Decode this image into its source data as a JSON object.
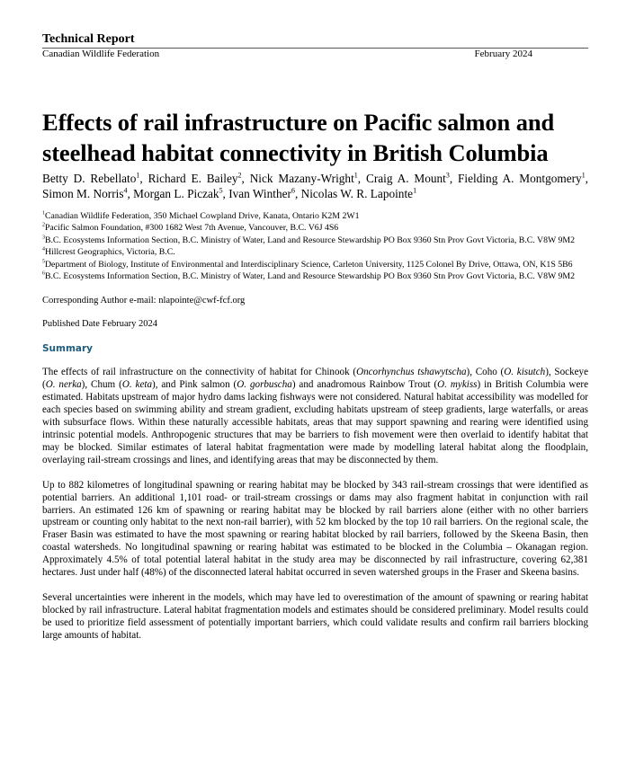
{
  "header": {
    "label": "Technical Report",
    "organization": "Canadian Wildlife Federation",
    "date": "February 2024"
  },
  "title": "Effects of rail infrastructure on Pacific salmon and steelhead habitat connectivity in British Columbia",
  "authors": [
    {
      "name": "Betty D. Rebellato",
      "aff": "1"
    },
    {
      "name": "Richard E. Bailey",
      "aff": "2"
    },
    {
      "name": "Nick Mazany-Wright",
      "aff": "1"
    },
    {
      "name": "Craig A. Mount",
      "aff": "3"
    },
    {
      "name": "Fielding A. Montgomery",
      "aff": "1"
    },
    {
      "name": "Simon M. Norris",
      "aff": "4"
    },
    {
      "name": "Morgan L. Piczak",
      "aff": "5"
    },
    {
      "name": "Ivan Winther",
      "aff": "6"
    },
    {
      "name": "Nicolas W. R. Lapointe",
      "aff": "1"
    }
  ],
  "affiliations": [
    {
      "num": "1",
      "text": "Canadian Wildlife Federation, 350 Michael Cowpland Drive, Kanata, Ontario K2M 2W1"
    },
    {
      "num": "2",
      "text": "Pacific Salmon Foundation, #300 1682 West 7th Avenue, Vancouver, B.C. V6J 4S6"
    },
    {
      "num": "3",
      "text": "B.C. Ecosystems Information Section, B.C. Ministry of Water, Land and Resource Stewardship PO Box 9360 Stn Prov Govt Victoria, B.C. V8W 9M2"
    },
    {
      "num": "4",
      "text": "Hillcrest Geographics, Victoria, B.C."
    },
    {
      "num": "5",
      "text": "Department of Biology, Institute of Environmental and Interdisciplinary Science, Carleton University, 1125 Colonel By Drive, Ottawa, ON, K1S 5B6"
    },
    {
      "num": "6",
      "text": "B.C. Ecosystems Information Section, B.C. Ministry of Water, Land and Resource Stewardship PO Box 9360 Stn Prov Govt Victoria, B.C. V8W 9M2"
    }
  ],
  "corresponding": "Corresponding Author e-mail: nlapointe@cwf-fcf.org",
  "published": "Published Date February 2024",
  "summary_heading": "Summary",
  "paragraph1": [
    {
      "t": "The effects of rail infrastructure on the connectivity of habitat for Chinook ("
    },
    {
      "t": "Oncorhynchus tshawytscha",
      "i": true
    },
    {
      "t": "), Coho ("
    },
    {
      "t": "O. kisutch",
      "i": true
    },
    {
      "t": "), Sockeye ("
    },
    {
      "t": "O. nerka",
      "i": true
    },
    {
      "t": "), Chum ("
    },
    {
      "t": "O. keta",
      "i": true
    },
    {
      "t": "), and Pink salmon ("
    },
    {
      "t": "O. gorbuscha",
      "i": true
    },
    {
      "t": ") and anadromous Rainbow Trout ("
    },
    {
      "t": "O. mykiss",
      "i": true
    },
    {
      "t": ") in British Columbia were estimated. Habitats upstream of major hydro dams lacking fishways were not considered. Natural habitat accessibility was modelled for each species based on swimming ability and stream gradient, excluding habitats upstream of steep gradients, large waterfalls, or areas with subsurface flows. Within these naturally accessible habitats, areas that may support spawning and rearing were identified using intrinsic potential models. Anthropogenic structures that may be barriers to fish movement were then overlaid to identify habitat that may be blocked. Similar estimates of lateral habitat fragmentation were made by modelling lateral habitat along the floodplain, overlaying rail-stream crossings and lines, and identifying areas that may be disconnected by them."
    }
  ],
  "paragraph2": "Up to 882 kilometres of longitudinal spawning or rearing habitat may be blocked by 343 rail-stream crossings that were identified as potential barriers. An additional 1,101 road- or trail-stream crossings or dams may also fragment habitat in conjunction with rail barriers. An estimated 126 km of spawning or rearing habitat may be blocked by rail barriers alone (either with no other barriers upstream or counting only habitat to the next non-rail barrier), with 52 km blocked by the top 10 rail barriers. On the regional scale, the Fraser Basin was estimated to have the most spawning or rearing habitat blocked by rail barriers, followed by the Skeena Basin, then coastal watersheds. No longitudinal spawning or rearing habitat was estimated to be blocked in the Columbia – Okanagan region. Approximately 4.5% of total potential lateral habitat in the study area may be disconnected by rail infrastructure, covering 62,381 hectares. Just under half (48%) of the disconnected lateral habitat occurred in seven watershed groups in the Fraser and Skeena basins.",
  "paragraph3": "Several uncertainties were inherent in the models, which may have led to overestimation of the amount of spawning or rearing habitat blocked by rail infrastructure. Lateral habitat fragmentation models and estimates should be considered preliminary. Model results could be used to prioritize field assessment of potentially important barriers, which could validate results and confirm rail barriers blocking large amounts of habitat.",
  "colors": {
    "summary_heading": "#1f5c7a"
  }
}
